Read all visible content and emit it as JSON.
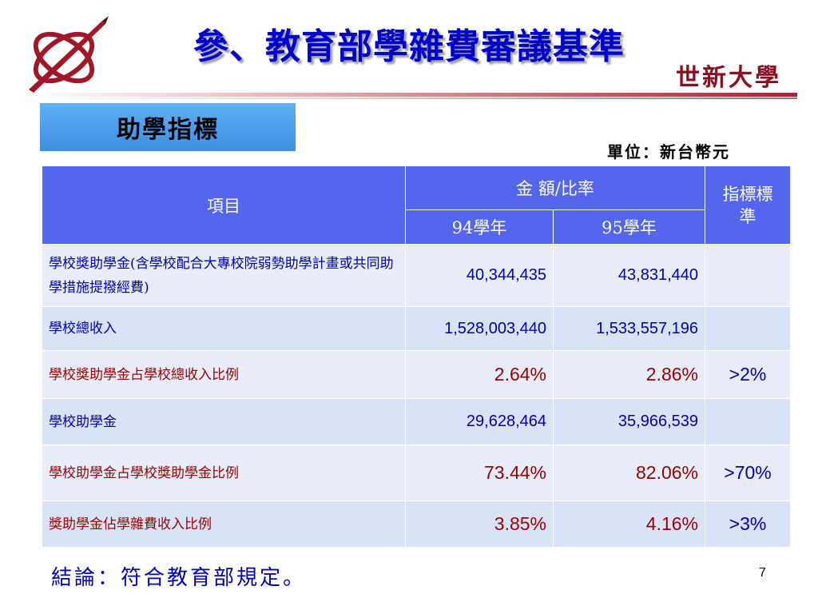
{
  "slide": {
    "title": "參、教育部學雜費審議基準",
    "university": "世新大學",
    "section": "助學指標",
    "unit": "單位：新台幣元",
    "conclusion": "結論：符合教育部規定。",
    "page_number": "7"
  },
  "table": {
    "col_item": "項目",
    "col_amount": "金  額/比率",
    "col_year1": "94學年",
    "col_year2": "95學年",
    "col_standard": "指標標準",
    "rows": [
      {
        "item": "學校獎助學金(含學校配合大專校院弱勢助學計畫或共同助學措施提撥經費)",
        "y94": "40,344,435",
        "y95": "43,831,440",
        "standard": "",
        "highlight": false
      },
      {
        "item": "學校總收入",
        "y94": "1,528,003,440",
        "y95": "1,533,557,196",
        "standard": "",
        "highlight": false
      },
      {
        "item": "學校獎助學金占學校總收入比例",
        "y94": "2.64%",
        "y95": "2.86%",
        "standard": ">2%",
        "highlight": true
      },
      {
        "item": "學校助學金",
        "y94": "29,628,464",
        "y95": "35,966,539",
        "standard": "",
        "highlight": false
      },
      {
        "item": "學校助學金占學校獎助學金比例",
        "y94": "73.44%",
        "y95": "82.06%",
        "standard": ">70%",
        "highlight": true
      },
      {
        "item": "獎助學金佔學雜費收入比例",
        "y94": "3.85%",
        "y95": "4.16%",
        "standard": ">3%",
        "highlight": true
      }
    ]
  }
}
